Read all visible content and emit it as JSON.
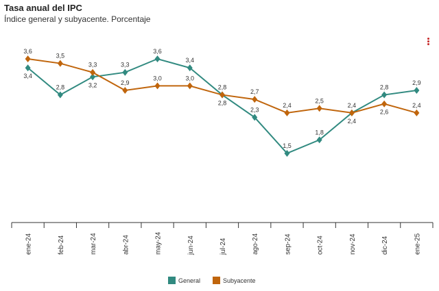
{
  "title": "Tasa anual del IPC",
  "subtitle": "Índice general y subyacente. Porcentaje",
  "menu_icon": "kebab-menu-icon",
  "chart_data": {
    "type": "line",
    "title": "Tasa anual del IPC",
    "subtitle": "Índice general y subyacente. Porcentaje",
    "categories": [
      "ene-24",
      "feb-24",
      "mar-24",
      "abr-24",
      "may-24",
      "jun-24",
      "jul-24",
      "ago-24",
      "sep-24",
      "oct-24",
      "nov-24",
      "dic-24",
      "ene-25"
    ],
    "series": [
      {
        "name": "General",
        "color": "#318a80",
        "values": [
          3.4,
          2.8,
          3.2,
          3.3,
          3.6,
          3.4,
          2.8,
          2.3,
          1.5,
          1.8,
          2.4,
          2.8,
          2.9
        ],
        "labels": [
          "3,4",
          "2,8",
          "3,2",
          "3,3",
          "3,6",
          "3,4",
          "2,8",
          "2,3",
          "1,5",
          "1,8",
          "2,4",
          "2,8",
          "2,9"
        ]
      },
      {
        "name": "Subyacente",
        "color": "#c0650c",
        "values": [
          3.6,
          3.5,
          3.3,
          2.9,
          3.0,
          3.0,
          2.8,
          2.7,
          2.4,
          2.5,
          2.4,
          2.6,
          2.4
        ],
        "labels": [
          "3,6",
          "3,5",
          "3,3",
          "2,9",
          "3,0",
          "3,0",
          "2,8",
          "2,7",
          "2,4",
          "2,5",
          "2,4",
          "2,6",
          "2,4"
        ]
      }
    ],
    "marker": "diamond",
    "grid": false,
    "legend_position": "bottom"
  }
}
